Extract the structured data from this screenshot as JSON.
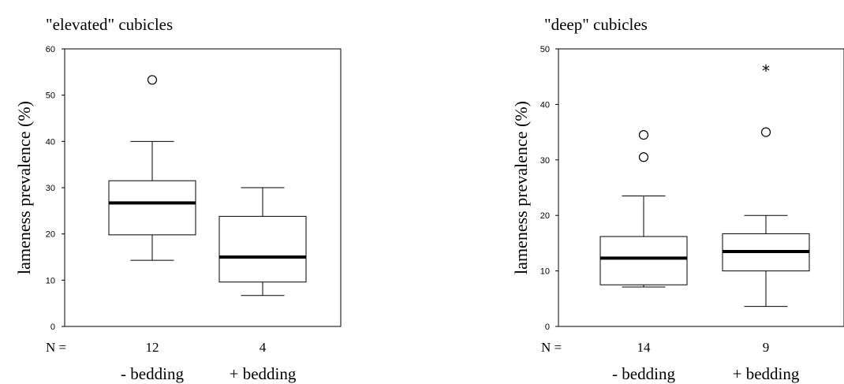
{
  "chart_data": [
    {
      "type": "boxplot",
      "title": "\"elevated\" cubicles",
      "ylabel": "lameness prevalence (%)",
      "ylim": [
        0,
        60
      ],
      "yticks": [
        0,
        10,
        20,
        30,
        40,
        50,
        60
      ],
      "n_label": "N =",
      "categories": [
        "- bedding",
        "+ bedding"
      ],
      "series": [
        {
          "n": "12",
          "whisker_low": 14.3,
          "q1": 19.8,
          "median": 26.7,
          "q3": 31.5,
          "whisker_high": 40.0,
          "outliers": [
            53.3
          ],
          "extremes": []
        },
        {
          "n": "4",
          "whisker_low": 6.7,
          "q1": 9.6,
          "median": 15.0,
          "q3": 23.8,
          "whisker_high": 30.0,
          "outliers": [],
          "extremes": []
        }
      ]
    },
    {
      "type": "boxplot",
      "title": "\"deep\" cubicles",
      "ylabel": "lameness prevalence (%)",
      "ylim": [
        0,
        50
      ],
      "yticks": [
        0,
        10,
        20,
        30,
        40,
        50
      ],
      "n_label": "N =",
      "categories": [
        "- bedding",
        "+ bedding"
      ],
      "series": [
        {
          "n": "14",
          "whisker_low": 7.1,
          "q1": 7.5,
          "median": 12.3,
          "q3": 16.2,
          "whisker_high": 23.5,
          "outliers": [
            30.5,
            34.5
          ],
          "extremes": []
        },
        {
          "n": "9",
          "whisker_low": 3.6,
          "q1": 10.0,
          "median": 13.5,
          "q3": 16.7,
          "whisker_high": 20.0,
          "outliers": [
            35.0
          ],
          "extremes": [
            46.3
          ]
        }
      ]
    }
  ]
}
